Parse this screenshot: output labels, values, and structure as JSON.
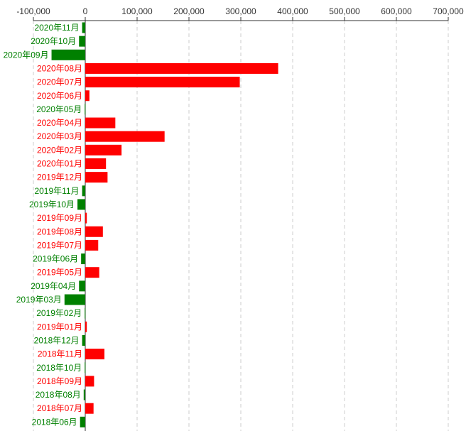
{
  "chart_data": {
    "type": "bar",
    "orientation": "horizontal",
    "xlim": [
      -100000,
      700000
    ],
    "x_ticks": [
      -100000,
      0,
      100000,
      200000,
      300000,
      400000,
      500000,
      600000,
      700000
    ],
    "x_tick_labels": [
      "-100,000",
      "0",
      "100,000",
      "200,000",
      "300,000",
      "400,000",
      "500,000",
      "600,000",
      "700,000"
    ],
    "x_axis_position": "top",
    "grid": "vertical dashed",
    "colors": {
      "positive": "#ff0000",
      "negative": "#008000"
    },
    "categories": [
      "2020年11月",
      "2020年10月",
      "2020年09月",
      "2020年08月",
      "2020年07月",
      "2020年06月",
      "2020年05月",
      "2020年04月",
      "2020年03月",
      "2020年02月",
      "2020年01月",
      "2019年12月",
      "2019年11月",
      "2019年10月",
      "2019年09月",
      "2019年08月",
      "2019年07月",
      "2019年06月",
      "2019年05月",
      "2019年04月",
      "2019年03月",
      "2019年02月",
      "2019年01月",
      "2018年12月",
      "2018年11月",
      "2018年10月",
      "2018年09月",
      "2018年08月",
      "2018年07月",
      "2018年06月"
    ],
    "values": [
      -6000,
      -12000,
      -65000,
      372000,
      298000,
      8000,
      -1000,
      58000,
      153000,
      70000,
      40000,
      43000,
      -6000,
      -15000,
      3000,
      34000,
      25000,
      -8000,
      27000,
      -12000,
      -40000,
      -1000,
      3000,
      -6000,
      37000,
      -1000,
      17000,
      -3000,
      16000,
      -10000
    ]
  }
}
